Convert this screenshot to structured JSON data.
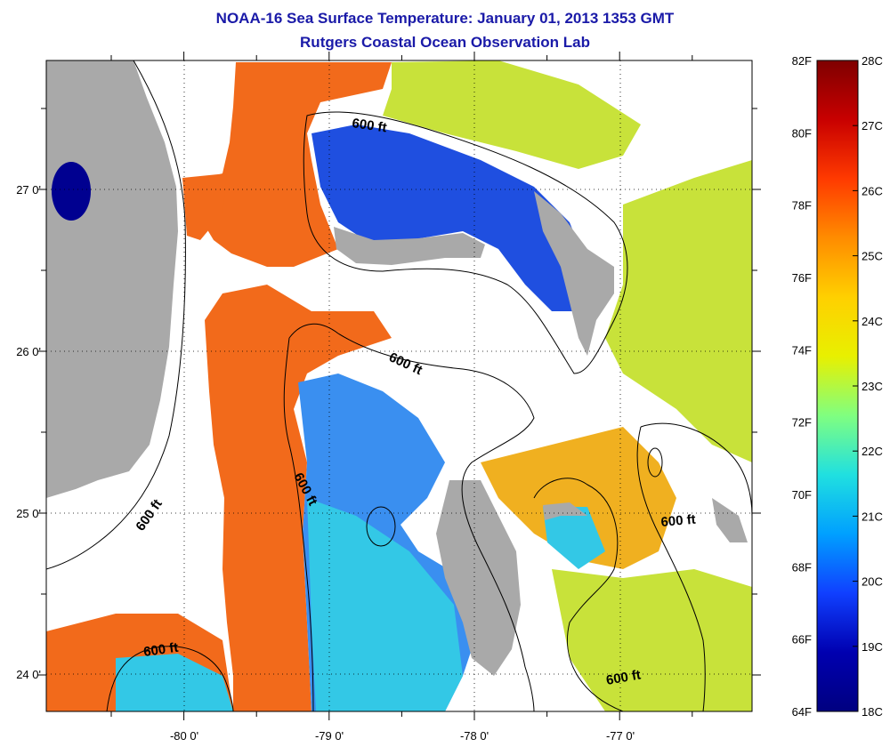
{
  "title_line1": "NOAA-16 Sea Surface Temperature:  January 01, 2013 1353 GMT",
  "title_line2": "Rutgers Coastal Ocean Observation Lab",
  "map": {
    "lon_ticks": [
      "-80 0'",
      "-79 0'",
      "-78 0'",
      "-77 0'"
    ],
    "lat_ticks": [
      "27 0'",
      "26 0'",
      "25 0'",
      "24 0'"
    ],
    "contour_labels": [
      "600 ft",
      "600 ft",
      "600 ft",
      "600 ft",
      "600 ft",
      "600 ft"
    ],
    "colors": {
      "land": "#a9a9a9",
      "cloud": "#ffffff",
      "warm": "#f26a1b",
      "cool": "#1f4fe0",
      "mid": "#33c8e6"
    }
  },
  "colorbar": {
    "fahrenheit_labels": [
      "82F",
      "80F",
      "78F",
      "76F",
      "74F",
      "72F",
      "70F",
      "68F",
      "66F",
      "64F"
    ],
    "celsius_labels": [
      "28C",
      "27C",
      "26C",
      "25C",
      "24C",
      "23C",
      "22C",
      "21C",
      "20C",
      "19C",
      "18C"
    ],
    "min_f": 64,
    "max_f": 82,
    "min_c": 18,
    "max_c": 28,
    "gradient": [
      "#7f0000",
      "#c80000",
      "#ff3a00",
      "#ff8c00",
      "#ffd000",
      "#e8f000",
      "#80ff80",
      "#20e0e0",
      "#00a0ff",
      "#1040ff",
      "#0000b0",
      "#000080"
    ]
  }
}
